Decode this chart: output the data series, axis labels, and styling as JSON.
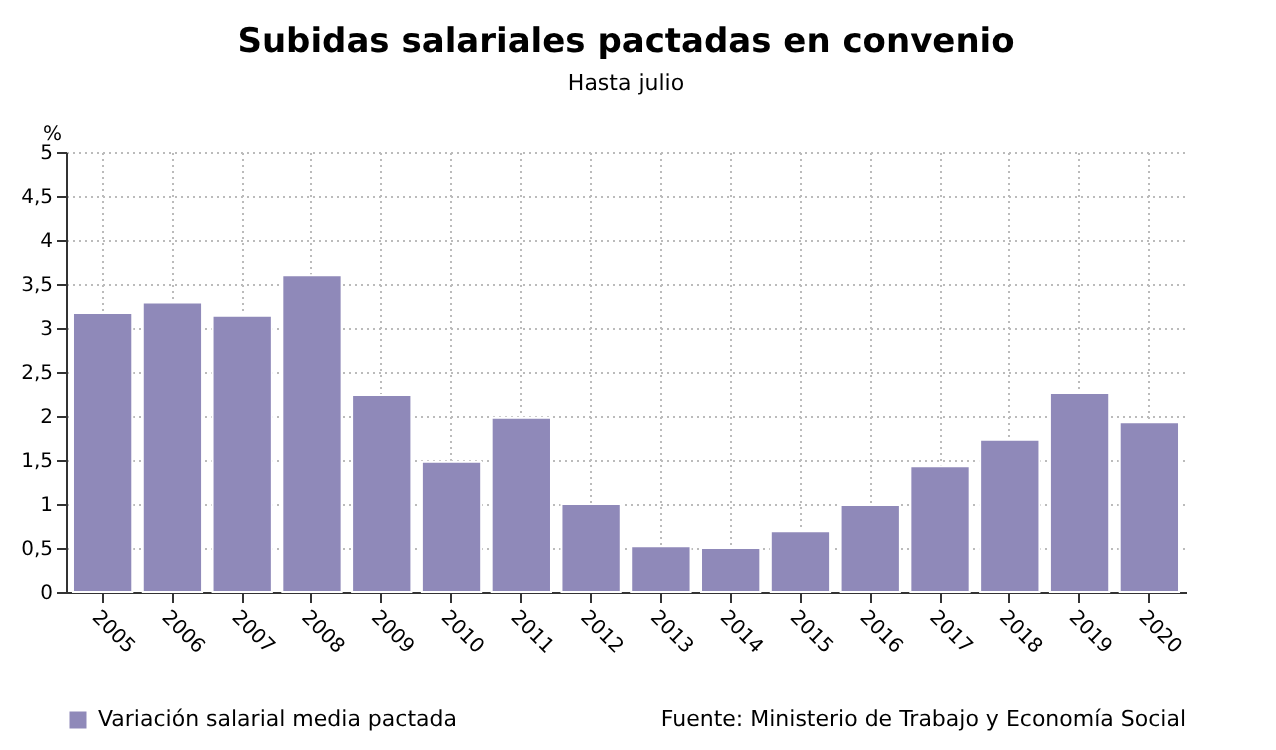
{
  "chart_data": {
    "type": "bar",
    "title": "Subidas salariales pactadas en convenio",
    "subtitle": "Hasta julio",
    "ylabel": "%",
    "categories": [
      "2005",
      "2006",
      "2007",
      "2008",
      "2009",
      "2010",
      "2011",
      "2012",
      "2013",
      "2014",
      "2015",
      "2016",
      "2017",
      "2018",
      "2019",
      "2020"
    ],
    "series": [
      {
        "name": "Variación salarial media pactada",
        "color": "#8f89b9",
        "values": [
          3.17,
          3.29,
          3.14,
          3.6,
          2.24,
          1.48,
          1.98,
          1.0,
          0.52,
          0.5,
          0.69,
          0.99,
          1.43,
          1.73,
          2.26,
          1.93
        ]
      }
    ],
    "ylim": [
      0,
      5
    ],
    "yticks": [
      0,
      {
        "value": 0.5,
        "label": "0,5"
      },
      1,
      {
        "value": 1.5,
        "label": "1,5"
      },
      2,
      {
        "value": 2.5,
        "label": "2,5"
      },
      3,
      {
        "value": 3.5,
        "label": "3,5"
      },
      4,
      {
        "value": 4.5,
        "label": "4,5"
      },
      5
    ],
    "grid": true,
    "legend": "bottom left",
    "annotations": [
      "Fuente: Ministerio de Trabajo y Economía Social"
    ]
  }
}
